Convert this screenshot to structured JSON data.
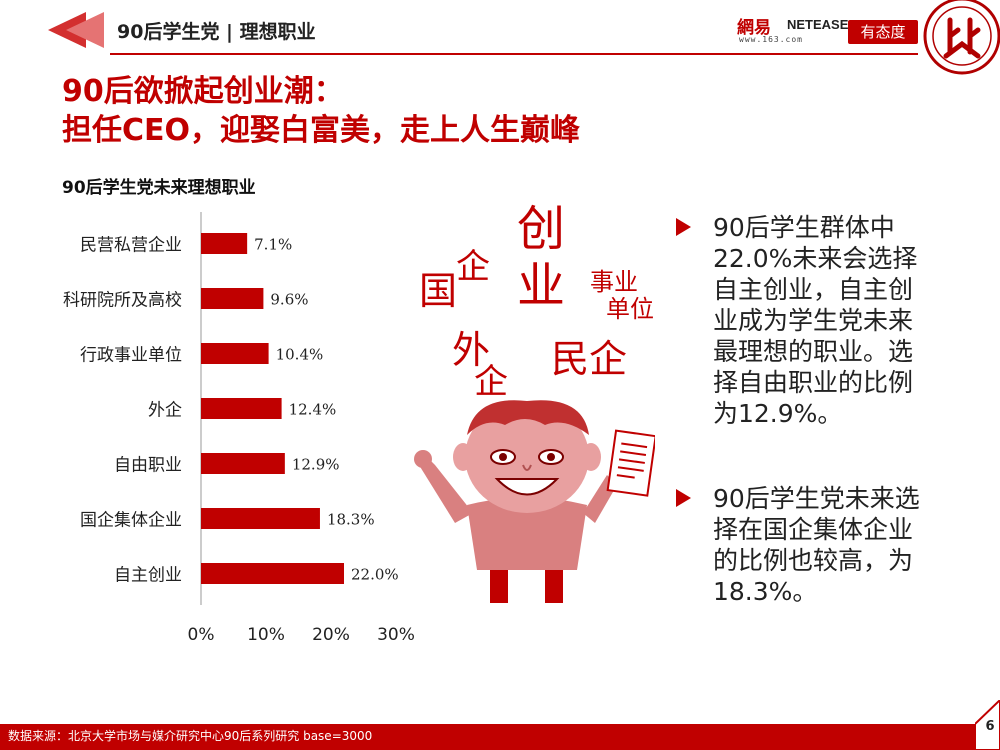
{
  "header": {
    "title": "90后学生党 | 理想职业",
    "netease_big": "網易",
    "netease_brand": "NETEASE",
    "netease_url": "www.163.com",
    "youtaidu": "有态度",
    "accent": "#c00000"
  },
  "headline": {
    "line1": "90后欲掀起创业潮：",
    "line2": "担任CEO，迎娶白富美，走上人生巅峰"
  },
  "chart_data": {
    "type": "bar",
    "orientation": "horizontal",
    "title": "90后学生党未来理想职业",
    "categories": [
      "民营私营企业",
      "科研院所及高校",
      "行政事业单位",
      "外企",
      "自由职业",
      "国企集体企业",
      "自主创业"
    ],
    "values": [
      7.1,
      9.6,
      10.4,
      12.4,
      12.9,
      18.3,
      22.0
    ],
    "value_labels": [
      "7.1%",
      "9.6%",
      "10.4%",
      "12.4%",
      "12.9%",
      "18.3%",
      "22.0%"
    ],
    "xlim": [
      0,
      30
    ],
    "x_ticks": [
      0,
      10,
      20,
      30
    ],
    "x_tick_labels": [
      "0%",
      "10%",
      "20%",
      "30%"
    ],
    "grid": false,
    "bar_color": "#c00000"
  },
  "illustration": {
    "words": {
      "chuangye_1": "创",
      "chuangye_2": "业",
      "qi": "企",
      "guo": "国",
      "shiye_1": "事业",
      "shiye_2": "单位",
      "wai": "外",
      "qi2": "企",
      "minqi": "民企"
    }
  },
  "bullets": [
    "90后学生群体中22.0%未来会选择自主创业，自主创业成为学生党未来最理想的职业。选择自由职业的比例为12.9%。",
    "90后学生党未来选择在国企集体企业的比例也较高，为18.3%。"
  ],
  "footer": {
    "source": "数据来源：北京大学市场与媒介研究中心90后系列研究 base=3000",
    "page": "6"
  }
}
